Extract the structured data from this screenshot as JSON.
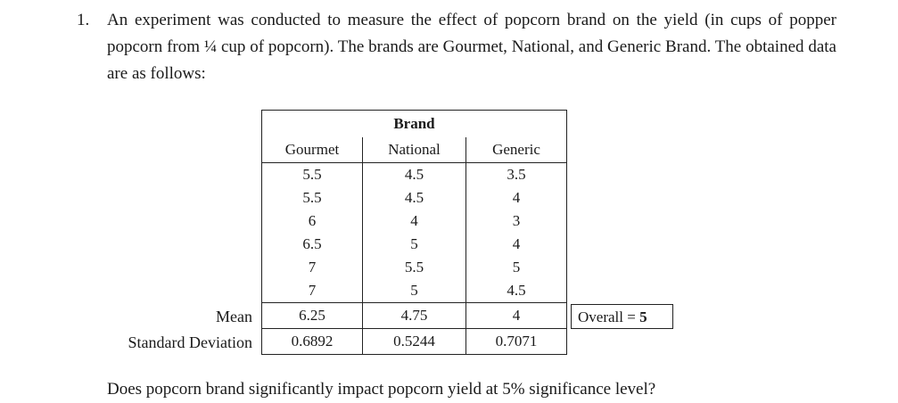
{
  "problem": {
    "number": "1.",
    "text": "An experiment was conducted to measure the effect of popcorn brand on the yield (in cups of popper popcorn from ¼ cup of popcorn). The brands are Gourmet, National, and Generic Brand. The obtained data are as follows:"
  },
  "table": {
    "group_header": "Brand",
    "columns": [
      "Gourmet",
      "National",
      "Generic"
    ],
    "rows": [
      [
        "5.5",
        "4.5",
        "3.5"
      ],
      [
        "5.5",
        "4.5",
        "4"
      ],
      [
        "6",
        "4",
        "3"
      ],
      [
        "6.5",
        "5",
        "4"
      ],
      [
        "7",
        "5.5",
        "5"
      ],
      [
        "7",
        "5",
        "4.5"
      ]
    ],
    "mean_label": "Mean",
    "means": [
      "6.25",
      "4.75",
      "4"
    ],
    "sd_label": "Standard Deviation",
    "sds": [
      "0.6892",
      "0.5244",
      "0.7071"
    ],
    "overall_label": "Overall = ",
    "overall_value": "5"
  },
  "question": "Does popcorn brand significantly impact popcorn yield at 5% significance level?"
}
